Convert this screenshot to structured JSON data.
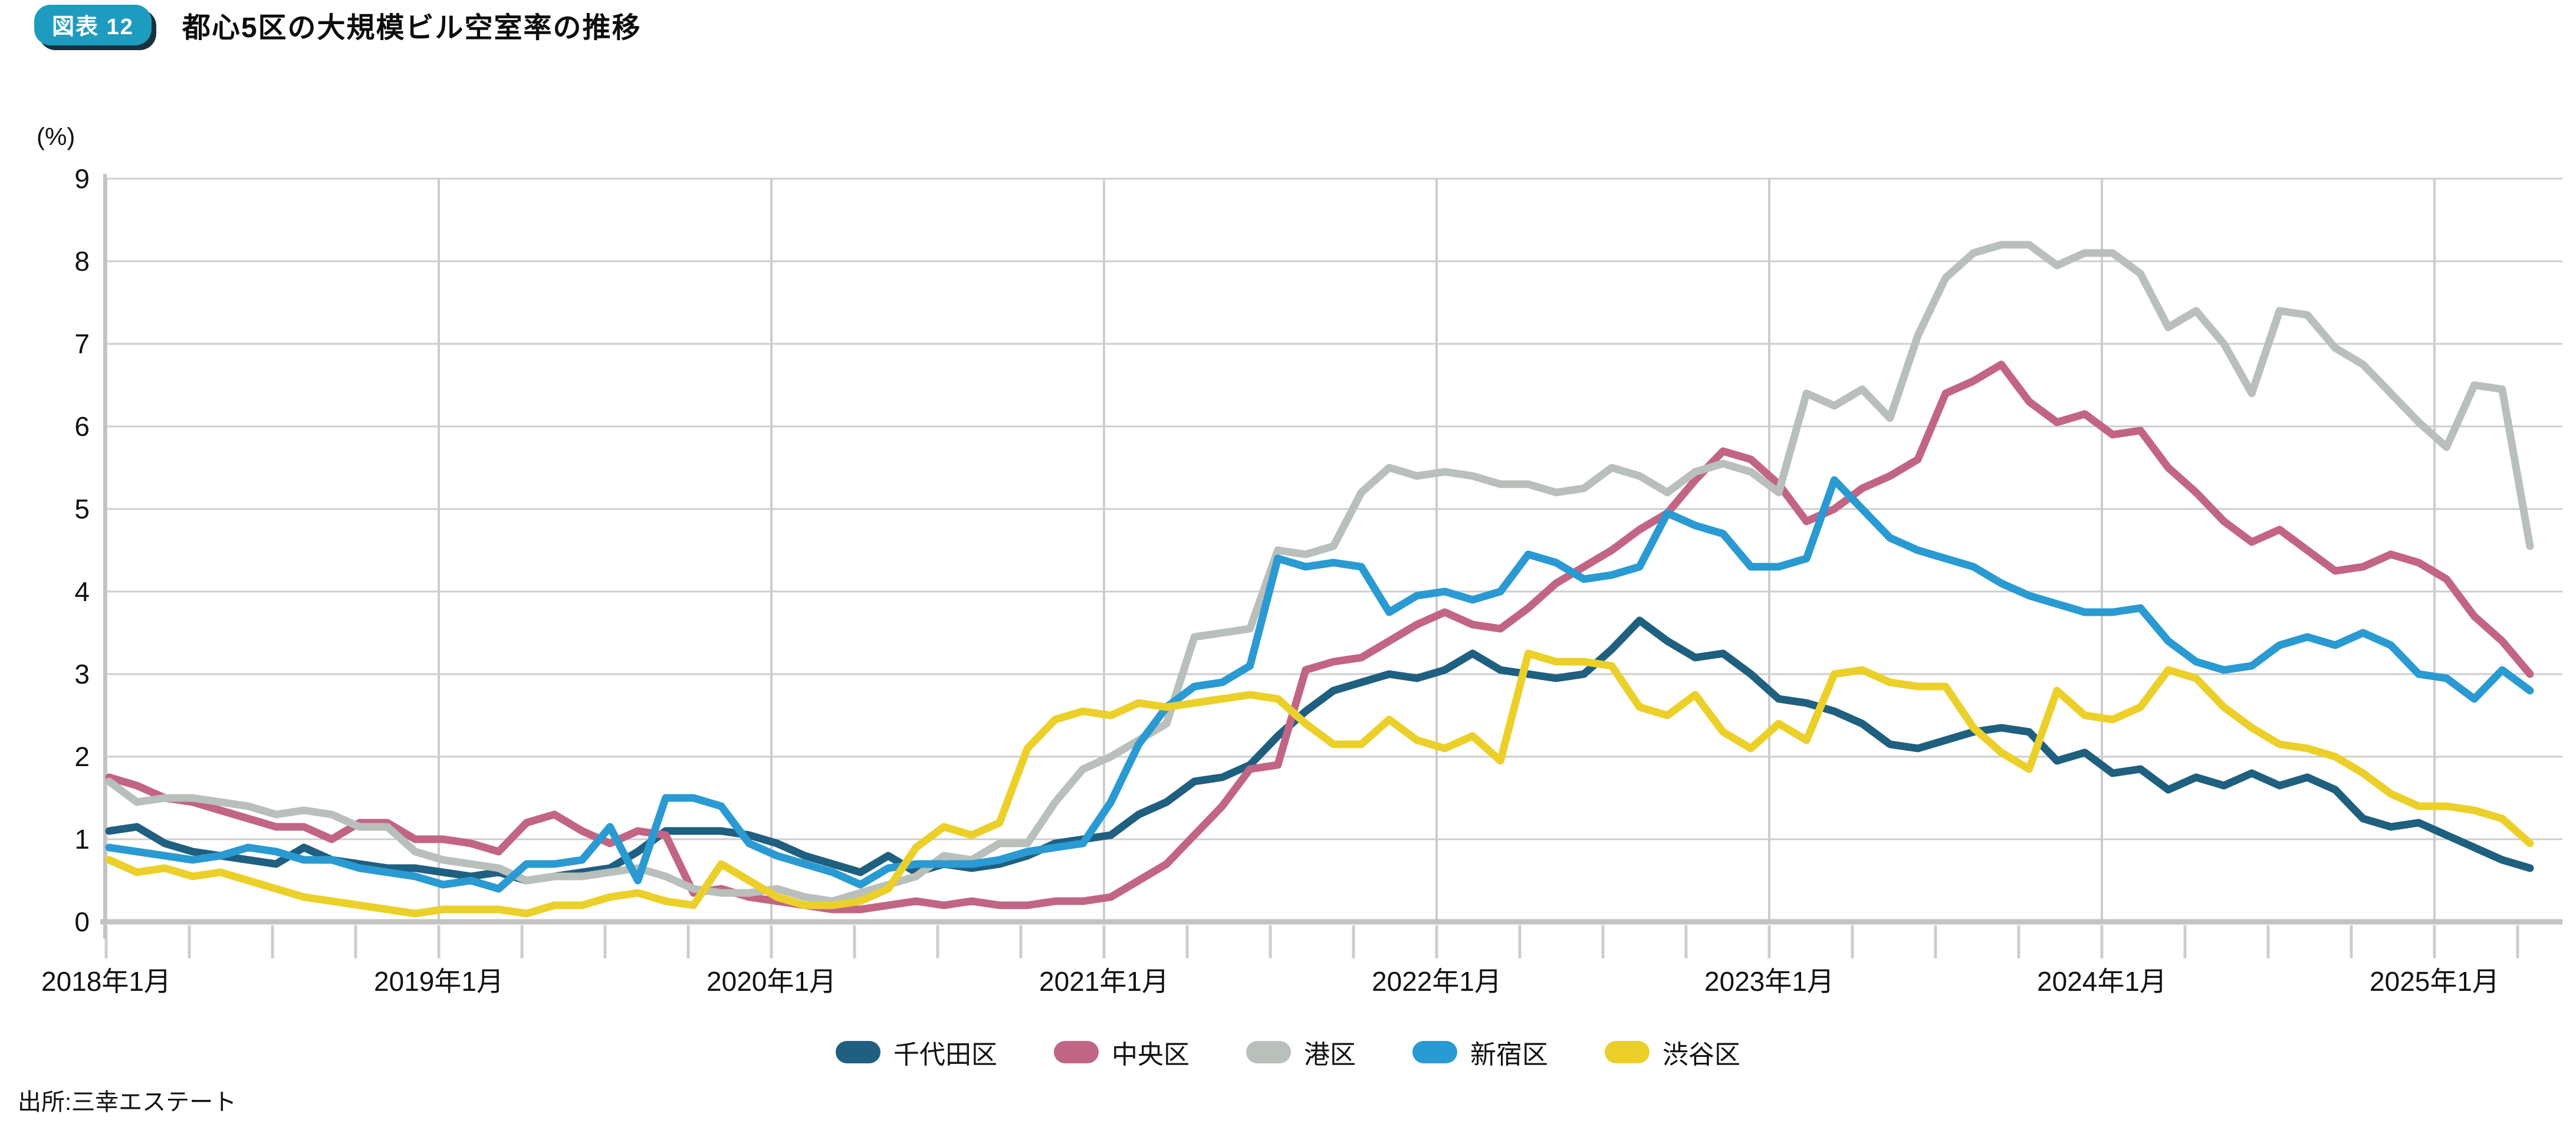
{
  "header": {
    "badge": "図表 12",
    "title": "都心5区の大規模ビル空室率の推移"
  },
  "source": "出所:三幸エステート",
  "chart_data": {
    "type": "line",
    "title": "都心5区の大規模ビル空室率の推移",
    "unit_label": "(%)",
    "ylabel": "(%)",
    "ylim": [
      0,
      9
    ],
    "yticks": [
      0,
      1,
      2,
      3,
      4,
      5,
      6,
      7,
      8,
      9
    ],
    "grid": true,
    "legend_position": "bottom",
    "x_frequency": "monthly",
    "x_start": "2018-01",
    "x_end": "2025-04",
    "x_tick_labels": [
      "2018年1月",
      "2019年1月",
      "2020年1月",
      "2021年1月",
      "2022年1月",
      "2023年1月",
      "2024年1月",
      "2025年1月"
    ],
    "series": [
      {
        "name": "千代田区",
        "color": "#1f5f7f",
        "values": [
          1.1,
          1.15,
          0.95,
          0.85,
          0.8,
          0.75,
          0.7,
          0.9,
          0.75,
          0.7,
          0.65,
          0.65,
          0.6,
          0.55,
          0.6,
          0.5,
          0.55,
          0.6,
          0.65,
          0.85,
          1.1,
          1.1,
          1.1,
          1.05,
          0.95,
          0.8,
          0.7,
          0.6,
          0.8,
          0.6,
          0.7,
          0.65,
          0.7,
          0.8,
          0.95,
          1.0,
          1.05,
          1.3,
          1.45,
          1.7,
          1.75,
          1.9,
          2.25,
          2.55,
          2.8,
          2.9,
          3.0,
          2.95,
          3.05,
          3.25,
          3.05,
          3.0,
          2.95,
          3.0,
          3.3,
          3.65,
          3.4,
          3.2,
          3.25,
          3.0,
          2.7,
          2.65,
          2.55,
          2.4,
          2.15,
          2.1,
          2.2,
          2.3,
          2.35,
          2.3,
          1.95,
          2.05,
          1.8,
          1.85,
          1.6,
          1.75,
          1.65,
          1.8,
          1.65,
          1.75,
          1.6,
          1.25,
          1.15,
          1.2,
          1.05,
          0.9,
          0.75,
          0.65
        ]
      },
      {
        "name": "中央区",
        "color": "#c26584",
        "values": [
          1.75,
          1.65,
          1.5,
          1.45,
          1.35,
          1.25,
          1.15,
          1.15,
          1.0,
          1.2,
          1.2,
          1.0,
          1.0,
          0.95,
          0.85,
          1.2,
          1.3,
          1.1,
          0.95,
          1.1,
          1.05,
          0.35,
          0.4,
          0.3,
          0.25,
          0.2,
          0.15,
          0.15,
          0.2,
          0.25,
          0.2,
          0.25,
          0.2,
          0.2,
          0.25,
          0.25,
          0.3,
          0.5,
          0.7,
          1.05,
          1.4,
          1.85,
          1.9,
          3.05,
          3.15,
          3.2,
          3.4,
          3.6,
          3.75,
          3.6,
          3.55,
          3.8,
          4.1,
          4.3,
          4.5,
          4.75,
          4.95,
          5.35,
          5.7,
          5.6,
          5.3,
          4.85,
          5.0,
          5.25,
          5.4,
          5.6,
          6.4,
          6.55,
          6.75,
          6.3,
          6.05,
          6.15,
          5.9,
          5.95,
          5.5,
          5.2,
          4.85,
          4.6,
          4.75,
          4.5,
          4.25,
          4.3,
          4.45,
          4.35,
          4.15,
          3.7,
          3.4,
          3.0
        ]
      },
      {
        "name": "港区",
        "color": "#b9bfba",
        "values": [
          1.7,
          1.45,
          1.5,
          1.5,
          1.45,
          1.4,
          1.3,
          1.35,
          1.3,
          1.15,
          1.15,
          0.85,
          0.75,
          0.7,
          0.65,
          0.5,
          0.55,
          0.55,
          0.6,
          0.65,
          0.55,
          0.4,
          0.35,
          0.35,
          0.4,
          0.3,
          0.25,
          0.35,
          0.45,
          0.55,
          0.8,
          0.75,
          0.95,
          0.95,
          1.45,
          1.85,
          2.0,
          2.2,
          2.4,
          3.45,
          3.5,
          3.55,
          4.5,
          4.45,
          4.55,
          5.2,
          5.5,
          5.4,
          5.45,
          5.4,
          5.3,
          5.3,
          5.2,
          5.25,
          5.5,
          5.4,
          5.2,
          5.45,
          5.55,
          5.45,
          5.2,
          6.4,
          6.25,
          6.45,
          6.1,
          7.1,
          7.8,
          8.1,
          8.2,
          8.2,
          7.95,
          8.1,
          8.1,
          7.85,
          7.2,
          7.4,
          7.0,
          6.4,
          7.4,
          7.35,
          6.95,
          6.75,
          6.4,
          6.05,
          5.75,
          6.5,
          6.45,
          4.55
        ]
      },
      {
        "name": "新宿区",
        "color": "#2a9ad2",
        "values": [
          0.9,
          0.85,
          0.8,
          0.75,
          0.8,
          0.9,
          0.85,
          0.75,
          0.75,
          0.65,
          0.6,
          0.55,
          0.45,
          0.5,
          0.4,
          0.7,
          0.7,
          0.75,
          1.15,
          0.5,
          1.5,
          1.5,
          1.4,
          0.95,
          0.8,
          0.7,
          0.6,
          0.45,
          0.65,
          0.7,
          0.7,
          0.7,
          0.75,
          0.85,
          0.9,
          0.95,
          1.45,
          2.15,
          2.6,
          2.85,
          2.9,
          3.1,
          4.4,
          4.3,
          4.35,
          4.3,
          3.75,
          3.95,
          4.0,
          3.9,
          4.0,
          4.45,
          4.35,
          4.15,
          4.2,
          4.3,
          4.95,
          4.8,
          4.7,
          4.3,
          4.3,
          4.4,
          5.35,
          5.0,
          4.65,
          4.5,
          4.4,
          4.3,
          4.1,
          3.95,
          3.85,
          3.75,
          3.75,
          3.8,
          3.4,
          3.15,
          3.05,
          3.1,
          3.35,
          3.45,
          3.35,
          3.5,
          3.35,
          3.0,
          2.95,
          2.7,
          3.05,
          2.8
        ]
      },
      {
        "name": "渋谷区",
        "color": "#ecd02a",
        "values": [
          0.75,
          0.6,
          0.65,
          0.55,
          0.6,
          0.5,
          0.4,
          0.3,
          0.25,
          0.2,
          0.15,
          0.1,
          0.15,
          0.15,
          0.15,
          0.1,
          0.2,
          0.2,
          0.3,
          0.35,
          0.25,
          0.2,
          0.7,
          0.5,
          0.3,
          0.2,
          0.2,
          0.25,
          0.4,
          0.9,
          1.15,
          1.05,
          1.2,
          2.1,
          2.45,
          2.55,
          2.5,
          2.65,
          2.6,
          2.65,
          2.7,
          2.75,
          2.7,
          2.4,
          2.15,
          2.15,
          2.45,
          2.2,
          2.1,
          2.25,
          1.95,
          3.25,
          3.15,
          3.15,
          3.1,
          2.6,
          2.5,
          2.75,
          2.3,
          2.1,
          2.4,
          2.2,
          3.0,
          3.05,
          2.9,
          2.85,
          2.85,
          2.35,
          2.05,
          1.85,
          2.8,
          2.5,
          2.45,
          2.6,
          3.05,
          2.95,
          2.6,
          2.35,
          2.15,
          2.1,
          2.0,
          1.8,
          1.55,
          1.4,
          1.4,
          1.35,
          1.25,
          0.95
        ]
      }
    ]
  }
}
